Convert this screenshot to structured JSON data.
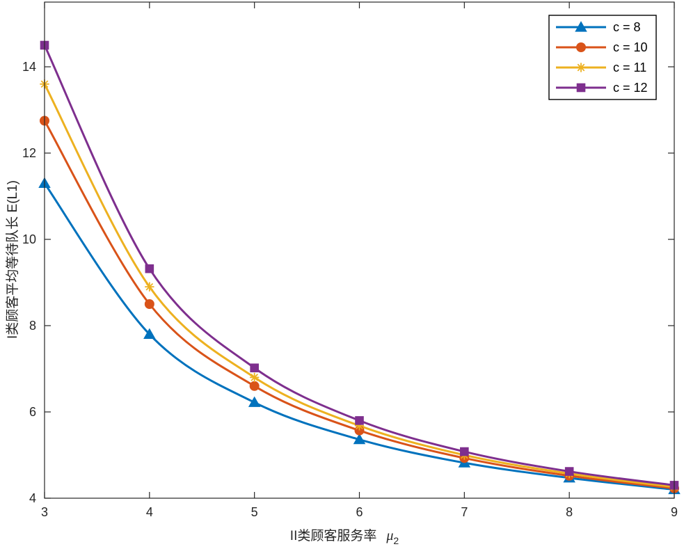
{
  "chart_data": {
    "type": "line",
    "title": "",
    "xlabel": "II类顾客服务率",
    "xlabel_symbol": "μ",
    "xlabel_subscript": "2",
    "ylabel": "I类顾客平均等待队长 E(L1)",
    "xlim": [
      3,
      9
    ],
    "ylim": [
      4,
      15.5
    ],
    "xticks": [
      "3",
      "4",
      "5",
      "6",
      "7",
      "8",
      "9"
    ],
    "yticks": [
      "4",
      "6",
      "8",
      "10",
      "12",
      "14"
    ],
    "grid": false,
    "legend_position": "top-right",
    "x": [
      3,
      4,
      5,
      6,
      7,
      8,
      9
    ],
    "series": [
      {
        "name": "c = 8",
        "marker": "triangle",
        "color": "#0072BD",
        "values": [
          11.3,
          7.8,
          6.22,
          5.36,
          4.82,
          4.47,
          4.2
        ]
      },
      {
        "name": "c = 10",
        "marker": "circle",
        "color": "#D95319",
        "values": [
          12.75,
          8.5,
          6.6,
          5.57,
          4.93,
          4.52,
          4.23
        ]
      },
      {
        "name": "c = 11",
        "marker": "asterisk",
        "color": "#EDB120",
        "values": [
          13.6,
          8.9,
          6.8,
          5.68,
          5.0,
          4.57,
          4.26
        ]
      },
      {
        "name": "c = 12",
        "marker": "square",
        "color": "#7E2F8E",
        "values": [
          14.5,
          9.32,
          7.02,
          5.8,
          5.08,
          4.62,
          4.3
        ]
      }
    ]
  }
}
